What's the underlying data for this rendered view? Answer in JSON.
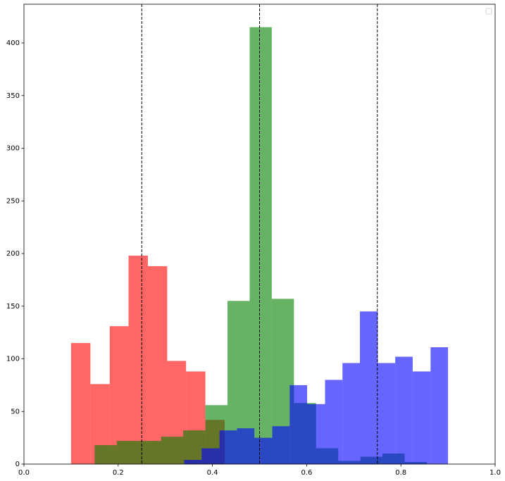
{
  "chart_data": {
    "type": "histogram",
    "series": [
      {
        "color": "#ff0000",
        "alpha": 0.6,
        "bins": [
          0.1,
          0.141,
          0.182,
          0.222,
          0.263,
          0.304,
          0.344,
          0.385,
          0.426
        ],
        "values": [
          115,
          76,
          131,
          198,
          188,
          98,
          88,
          42
        ]
      },
      {
        "color": "#008000",
        "alpha": 0.6,
        "bins": [
          0.15,
          0.197,
          0.244,
          0.291,
          0.338,
          0.385,
          0.432,
          0.479,
          0.526,
          0.573,
          0.62,
          0.667,
          0.714,
          0.761,
          0.808,
          0.855
        ],
        "values": [
          18,
          22,
          22,
          26,
          32,
          56,
          155,
          415,
          157,
          58,
          15,
          3,
          7,
          10,
          2
        ]
      },
      {
        "color": "#0000ff",
        "alpha": 0.6,
        "bins": [
          0.34,
          0.377,
          0.415,
          0.452,
          0.489,
          0.527,
          0.564,
          0.601,
          0.639,
          0.676,
          0.713,
          0.751,
          0.788,
          0.825,
          0.863,
          0.9
        ],
        "values": [
          4,
          15,
          32,
          34,
          25,
          36,
          75,
          57,
          80,
          96,
          145,
          96,
          102,
          88,
          111
        ]
      }
    ],
    "vlines": [
      0.25,
      0.5,
      0.75
    ],
    "xlim": [
      0,
      1
    ],
    "xticks": [
      {
        "value": 0,
        "label": "0.0"
      },
      0.2,
      0.4,
      0.6,
      0.8,
      {
        "value": 1,
        "label": "1.0"
      }
    ],
    "ylim": [
      0,
      436.8
    ],
    "yticks": [
      0,
      50,
      100,
      150,
      200,
      250,
      300,
      350,
      400
    ],
    "legend": "upper right"
  }
}
